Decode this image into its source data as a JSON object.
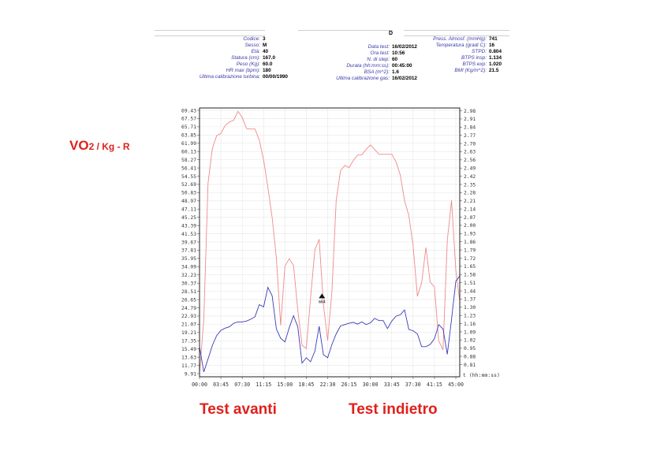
{
  "header": {
    "title_letter": "D",
    "col1": [
      {
        "label": "Codice:",
        "value": "3"
      },
      {
        "label": "Sesso:",
        "value": "M"
      },
      {
        "label": "Età:",
        "value": "40"
      },
      {
        "label": "Statura (cm):",
        "value": "167.0"
      },
      {
        "label": "Peso (Kg):",
        "value": "60.0"
      },
      {
        "label": "HR max (bpm):",
        "value": "180"
      },
      {
        "label": "Ultima calibrazione turbina:",
        "value": "00/00/1990"
      }
    ],
    "col2": [
      {
        "label": "Data test:",
        "value": "16/02/2012"
      },
      {
        "label": "Ora test:",
        "value": "10:56"
      },
      {
        "label": "N. di step:",
        "value": "60"
      },
      {
        "label": "Durata (hh:mm:ss):",
        "value": "00:45:00"
      },
      {
        "label": "BSA (m^2):",
        "value": "1.6"
      },
      {
        "label": "Ultima calibrazione gas:",
        "value": "16/02/2012"
      }
    ],
    "col3": [
      {
        "label": "Press. Atmosf. (mmHg):",
        "value": "741"
      },
      {
        "label": "Temperatura (gradi C):",
        "value": "16"
      },
      {
        "label": "STPD:",
        "value": "0.804"
      },
      {
        "label": "BTPS insp:",
        "value": "1.134"
      },
      {
        "label": "BTPS exp:",
        "value": "1.020"
      },
      {
        "label": "BMI (Kg/m^2):",
        "value": "21.5"
      }
    ]
  },
  "annotations": {
    "y_title_main": "VO",
    "y_title_sub": "2 / Kg  -  R",
    "test_avanti": "Test avanti",
    "test_indietro": "Test indietro"
  },
  "chart_data": {
    "type": "line",
    "title": "",
    "xlabel": "t (hh:mm:ss)",
    "x_tick_labels": [
      "00:00",
      "03:45",
      "07:30",
      "11:15",
      "15:00",
      "18:45",
      "22:30",
      "26:15",
      "30:00",
      "33:45",
      "37:30",
      "41:15",
      "45:00"
    ],
    "x_unit": "minutes",
    "xlim": [
      0,
      45
    ],
    "left_axis": {
      "ylim": [
        9.91,
        71.29
      ],
      "tick_labels": [
        "69.43",
        "67.57",
        "65.71",
        "63.85",
        "61.99",
        "60.13",
        "58.27",
        "56.41",
        "54.55",
        "52.69",
        "50.83",
        "48.97",
        "47.11",
        "45.25",
        "43.39",
        "41.53",
        "39.67",
        "37.81",
        "35.95",
        "34.09",
        "32.23",
        "30.37",
        "28.51",
        "26.65",
        "24.79",
        "22.93",
        "21.07",
        "19.21",
        "17.35",
        "15.49",
        "13.63",
        "11.77",
        "9.91"
      ]
    },
    "right_axis": {
      "ylim": [
        0.74,
        3.05
      ],
      "tick_labels": [
        "2.98",
        "2.91",
        "2.84",
        "2.77",
        "2.70",
        "2.63",
        "2.56",
        "2.49",
        "2.42",
        "2.35",
        "2.28",
        "2.21",
        "2.14",
        "2.07",
        "2.00",
        "1.93",
        "1.86",
        "1.79",
        "1.72",
        "1.65",
        "1.58",
        "1.51",
        "1.44",
        "1.37",
        "1.30",
        "1.23",
        "1.16",
        "1.09",
        "1.02",
        "0.95",
        "0.88",
        "0.81"
      ]
    },
    "marker": {
      "label": "mk4",
      "x": 21.5,
      "y": 27.3
    },
    "series": [
      {
        "color": "#f08a8a",
        "axis": "left",
        "points": [
          [
            0,
            9.9
          ],
          [
            0.75,
            22
          ],
          [
            1.5,
            53
          ],
          [
            2.25,
            60.8
          ],
          [
            3,
            63.7
          ],
          [
            3.75,
            64.2
          ],
          [
            4.5,
            66
          ],
          [
            5.25,
            66.8
          ],
          [
            6,
            67.2
          ],
          [
            6.75,
            69.2
          ],
          [
            7.5,
            67.8
          ],
          [
            8.25,
            65.3
          ],
          [
            9,
            65.2
          ],
          [
            9.75,
            65.2
          ],
          [
            10.5,
            62.7
          ],
          [
            11.25,
            58.2
          ],
          [
            12,
            52
          ],
          [
            12.75,
            45.2
          ],
          [
            13.5,
            36
          ],
          [
            14.25,
            20.8
          ],
          [
            15,
            34.2
          ],
          [
            15.75,
            35.9
          ],
          [
            16.5,
            34.4
          ],
          [
            17.25,
            24.3
          ],
          [
            18,
            16.3
          ],
          [
            18.75,
            15.6
          ],
          [
            19.5,
            27
          ],
          [
            20.25,
            37.9
          ],
          [
            21,
            40.3
          ],
          [
            21.75,
            25.6
          ],
          [
            22.5,
            17.4
          ],
          [
            23.25,
            28.5
          ],
          [
            24,
            49
          ],
          [
            24.75,
            55.8
          ],
          [
            25.5,
            57
          ],
          [
            26.25,
            56.5
          ],
          [
            27,
            58.1
          ],
          [
            27.75,
            59.3
          ],
          [
            28.5,
            59.4
          ],
          [
            29.25,
            60.6
          ],
          [
            30,
            61.6
          ],
          [
            30.75,
            60.6
          ],
          [
            31.5,
            59.5
          ],
          [
            32.25,
            59.5
          ],
          [
            33,
            59.5
          ],
          [
            33.75,
            59.5
          ],
          [
            34.5,
            57.8
          ],
          [
            35.25,
            54.8
          ],
          [
            36,
            49
          ],
          [
            36.75,
            45.7
          ],
          [
            37.5,
            38.9
          ],
          [
            38.25,
            27.4
          ],
          [
            39,
            30.5
          ],
          [
            39.75,
            38.4
          ],
          [
            40.5,
            30.6
          ],
          [
            41.25,
            29.5
          ],
          [
            42,
            17.3
          ],
          [
            42.75,
            15.3
          ],
          [
            43.5,
            40
          ],
          [
            44.25,
            49.1
          ],
          [
            45,
            33.3
          ],
          [
            45.75,
            25.7
          ]
        ]
      },
      {
        "color": "#3a3ab8",
        "axis": "left",
        "points": [
          [
            0,
            16
          ],
          [
            0.75,
            10.3
          ],
          [
            1.5,
            13.2
          ],
          [
            2.25,
            16.3
          ],
          [
            3,
            18.5
          ],
          [
            3.75,
            19.7
          ],
          [
            4.5,
            20.2
          ],
          [
            5.25,
            20.5
          ],
          [
            6,
            21.3
          ],
          [
            6.75,
            21.6
          ],
          [
            7.5,
            21.6
          ],
          [
            8.25,
            21.8
          ],
          [
            9,
            22.2
          ],
          [
            9.75,
            22.8
          ],
          [
            10.5,
            25.5
          ],
          [
            11.25,
            25
          ],
          [
            12,
            29.4
          ],
          [
            12.75,
            27.5
          ],
          [
            13.5,
            20
          ],
          [
            14.25,
            17.9
          ],
          [
            15,
            17.1
          ],
          [
            15.75,
            20.3
          ],
          [
            16.5,
            23
          ],
          [
            17.25,
            20.5
          ],
          [
            18,
            12.3
          ],
          [
            18.75,
            13.5
          ],
          [
            19.5,
            12.6
          ],
          [
            20.25,
            15
          ],
          [
            21,
            20.6
          ],
          [
            21.75,
            14.2
          ],
          [
            22.5,
            13.5
          ],
          [
            23.25,
            16.5
          ],
          [
            24,
            18.9
          ],
          [
            24.75,
            20.7
          ],
          [
            25.5,
            21
          ],
          [
            26.25,
            21.3
          ],
          [
            27,
            21.5
          ],
          [
            27.75,
            21.1
          ],
          [
            28.5,
            21.6
          ],
          [
            29.25,
            21
          ],
          [
            30,
            21.4
          ],
          [
            30.75,
            22.4
          ],
          [
            31.5,
            21.9
          ],
          [
            32.25,
            21.9
          ],
          [
            33,
            20.1
          ],
          [
            33.75,
            21.8
          ],
          [
            34.5,
            22.9
          ],
          [
            35.25,
            23.2
          ],
          [
            36,
            24.3
          ],
          [
            36.75,
            19.9
          ],
          [
            37.5,
            19.6
          ],
          [
            38.25,
            18.9
          ],
          [
            39,
            16
          ],
          [
            39.75,
            16
          ],
          [
            40.5,
            16.5
          ],
          [
            41.25,
            17.8
          ],
          [
            42,
            21
          ],
          [
            42.75,
            20
          ],
          [
            43.5,
            14.3
          ],
          [
            44.25,
            22.2
          ],
          [
            45,
            30.8
          ],
          [
            45.75,
            32.1
          ]
        ]
      }
    ]
  }
}
